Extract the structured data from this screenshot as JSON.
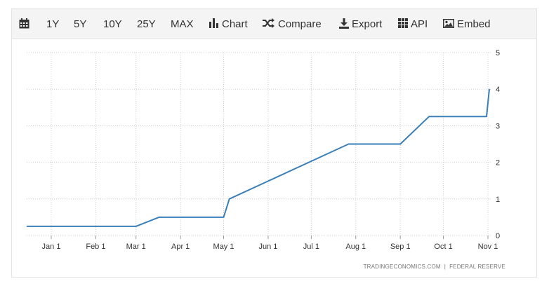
{
  "toolbar": {
    "calendar_icon": "calendar-icon",
    "range_1y": "1Y",
    "range_5y": "5Y",
    "range_10y": "10Y",
    "range_25y": "25Y",
    "range_max": "MAX",
    "chart_label": "Chart",
    "compare_label": "Compare",
    "export_label": "Export",
    "api_label": "API",
    "embed_label": "Embed"
  },
  "source": {
    "site": "TRADINGECONOMICS.COM",
    "separator": "|",
    "provider": "FEDERAL RESERVE"
  },
  "colors": {
    "line": "#3a7fb8",
    "grid": "#cccccc",
    "axis_text": "#333333"
  },
  "chart_data": {
    "type": "line",
    "title": "",
    "xlabel": "",
    "ylabel": "",
    "x_ticks": [
      "Jan 1",
      "Feb 1",
      "Mar 1",
      "Apr 1",
      "May 1",
      "Jun 1",
      "Jul 1",
      "Aug 1",
      "Sep 1",
      "Oct 1",
      "Nov 1"
    ],
    "y_ticks": [
      "0",
      "1",
      "2",
      "3",
      "4",
      "5"
    ],
    "ylim": [
      0,
      5
    ],
    "y_axis_side": "right",
    "grid": true,
    "series": [
      {
        "values": [
          {
            "x": "Dec 15",
            "y": 0.25
          },
          {
            "x": "Mar 1",
            "y": 0.25
          },
          {
            "x": "Mar 17",
            "y": 0.5
          },
          {
            "x": "May 1",
            "y": 0.5
          },
          {
            "x": "May 5",
            "y": 1.0
          },
          {
            "x": "Jul 27",
            "y": 2.5
          },
          {
            "x": "Sep 1",
            "y": 2.5
          },
          {
            "x": "Sep 21",
            "y": 3.25
          },
          {
            "x": "Oct 31",
            "y": 3.25
          },
          {
            "x": "Nov 2",
            "y": 4.0
          }
        ]
      }
    ]
  }
}
